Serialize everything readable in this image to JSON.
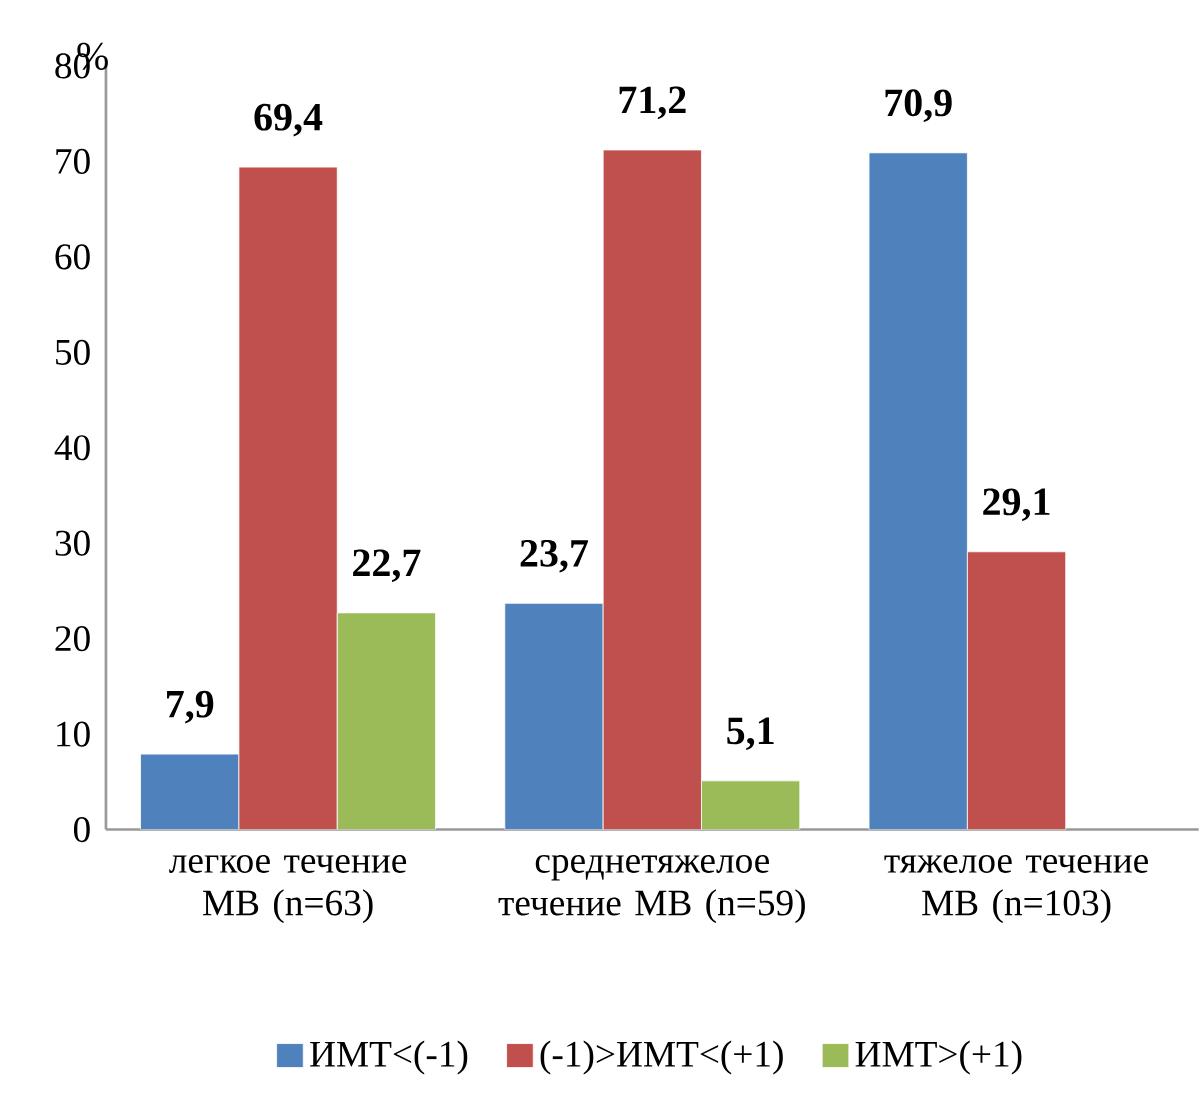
{
  "chart_data": {
    "type": "bar",
    "ylabel": "%",
    "categories": [
      "легкое течение МВ (n=63)",
      "среднетяжелое течение МВ (n=59)",
      "тяжелое течение МВ (n=103)"
    ],
    "series": [
      {
        "name": "ИМТ<(-1)",
        "color": "#4f81bd",
        "values": [
          7.9,
          23.7,
          70.9
        ],
        "value_labels": [
          "7,9",
          "23,7",
          "70,9"
        ]
      },
      {
        "name": "(-1)>ИМТ<(+1)",
        "color": "#c0504d",
        "values": [
          69.4,
          71.2,
          29.1
        ],
        "value_labels": [
          "69,4",
          "71,2",
          "29,1"
        ]
      },
      {
        "name": "ИМТ>(+1)",
        "color": "#9bbb59",
        "values": [
          22.7,
          5.1,
          null
        ],
        "value_labels": [
          "22,7",
          "5,1",
          null
        ]
      }
    ],
    "ylim": [
      0,
      80
    ],
    "yticks": [
      0,
      10,
      20,
      30,
      40,
      50,
      60,
      70,
      80
    ],
    "grid": false,
    "legend": "bottom"
  }
}
